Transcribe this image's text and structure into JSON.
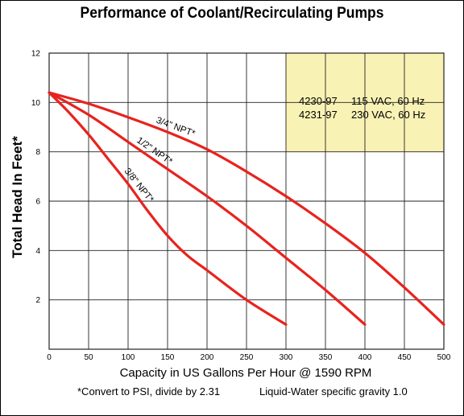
{
  "title": "Performance of Coolant/Recirculating Pumps",
  "footnote_left": "*Convert to PSI, divide by 2.31",
  "footnote_right": "Liquid-Water specific gravity 1.0",
  "colors": {
    "curve": "#e8231e",
    "legend_bg": "#f9f2b5",
    "grid": "#222222"
  },
  "chart_data": {
    "type": "line",
    "xlabel": "Capacity in US Gallons Per Hour @ 1590 RPM",
    "ylabel": "Total Head In Feet*",
    "xlim": [
      0,
      500
    ],
    "ylim": [
      0,
      12
    ],
    "x_ticks": [
      0,
      50,
      100,
      150,
      200,
      250,
      300,
      350,
      400,
      450,
      500
    ],
    "y_ticks": [
      2,
      4,
      6,
      8,
      10,
      12
    ],
    "grid": true,
    "legend": {
      "lines": [
        {
          "model": "4230-97",
          "spec": "115 VAC,  60 Hz"
        },
        {
          "model": "4231-97",
          "spec": "230 VAC,  60 Hz"
        }
      ]
    },
    "series": [
      {
        "name": "3/4\" NPT*",
        "x": [
          0,
          50,
          100,
          150,
          200,
          250,
          300,
          350,
          400,
          450,
          500
        ],
        "y": [
          10.4,
          9.95,
          9.4,
          8.8,
          8.1,
          7.2,
          6.2,
          5.1,
          3.9,
          2.5,
          1.0
        ]
      },
      {
        "name": "1/2\" NPT*",
        "x": [
          0,
          50,
          100,
          150,
          200,
          250,
          300,
          350,
          400
        ],
        "y": [
          10.4,
          9.5,
          8.4,
          7.3,
          6.2,
          5.0,
          3.7,
          2.4,
          1.0
        ]
      },
      {
        "name": "3/8\" NPT*",
        "x": [
          0,
          25,
          50,
          75,
          100,
          125,
          150,
          175,
          200,
          250,
          300
        ],
        "y": [
          10.4,
          9.6,
          8.7,
          7.7,
          6.7,
          5.6,
          4.6,
          3.8,
          3.2,
          2.0,
          1.0
        ]
      }
    ]
  }
}
